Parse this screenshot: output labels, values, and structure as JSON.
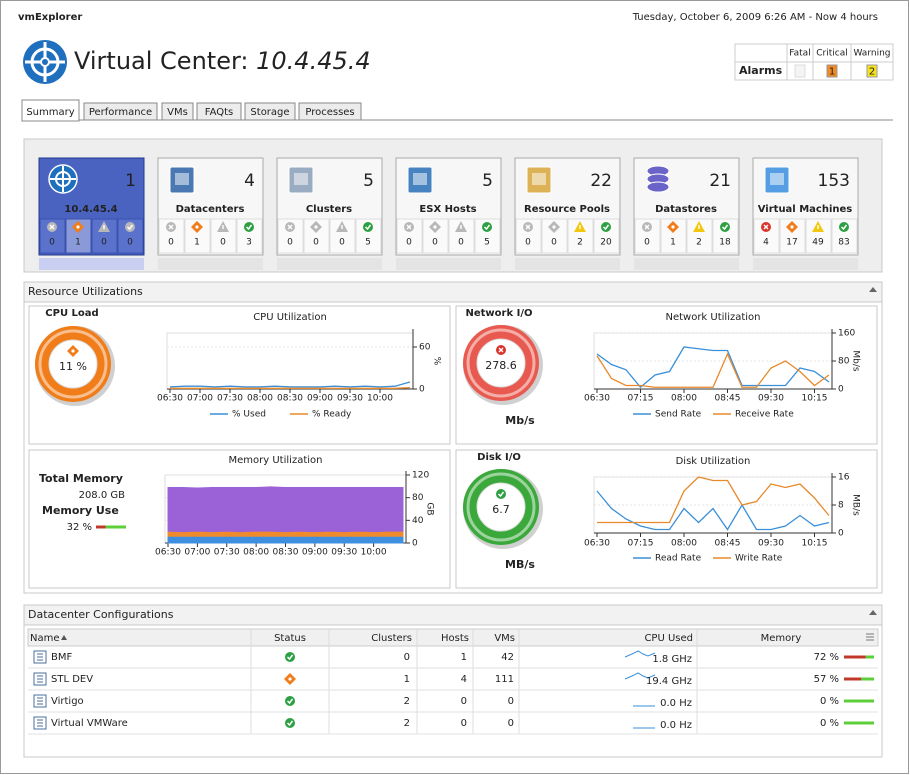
{
  "header": {
    "app": "vmExplorer",
    "timestamp": "Tuesday, October 6, 2009 6:26 AM - Now 4 hours",
    "title": "Virtual Center:",
    "host": "10.4.45.4"
  },
  "alarms": {
    "label": "Alarms",
    "columns": [
      {
        "name": "Fatal"
      },
      {
        "name": "Critical",
        "value": 1,
        "color": "#f08a24"
      },
      {
        "name": "Warning",
        "value": 2,
        "color": "#f7e31b"
      }
    ]
  },
  "tabs": {
    "items": [
      "Summary",
      "Performance",
      "VMs",
      "FAQts",
      "Storage",
      "Processes"
    ],
    "selected": 0
  },
  "tiles": [
    {
      "label": "10.4.45.4",
      "count": 1,
      "states": [
        0,
        1,
        0,
        0
      ],
      "selected": true
    },
    {
      "label": "Datacenters",
      "count": 4,
      "states": [
        0,
        1,
        0,
        3
      ]
    },
    {
      "label": "Clusters",
      "count": 5,
      "states": [
        0,
        0,
        0,
        5
      ]
    },
    {
      "label": "ESX Hosts",
      "count": 5,
      "states": [
        0,
        0,
        0,
        5
      ]
    },
    {
      "label": "Resource Pools",
      "count": 22,
      "states": [
        0,
        0,
        2,
        20
      ]
    },
    {
      "label": "Datastores",
      "count": 21,
      "states": [
        0,
        1,
        2,
        18
      ]
    },
    {
      "label": "Virtual Machines",
      "count": 153,
      "states": [
        4,
        17,
        49,
        83
      ]
    }
  ],
  "resources": {
    "title": "Resource Utilizations",
    "cpu": {
      "gauge": {
        "label": "CPU Load",
        "value": 11,
        "value_label": "11 %",
        "color": "#f07d1a"
      },
      "chart": {
        "type": "line",
        "title": "CPU Utilization",
        "x": [
          "06:30",
          "06:45",
          "07:00",
          "07:15",
          "07:30",
          "07:45",
          "08:00",
          "08:15",
          "08:30",
          "08:45",
          "09:00",
          "09:15",
          "09:30",
          "09:45",
          "10:00",
          "10:15",
          "10:30"
        ],
        "xticks": [
          "06:30",
          "07:00",
          "07:30",
          "08:00",
          "08:30",
          "09:00",
          "09:30",
          "10:00"
        ],
        "ylim": [
          0,
          80
        ],
        "yticks": [
          0,
          60
        ],
        "y_unit": "%",
        "grid": true,
        "series": [
          {
            "name": "% Used",
            "color": "#3a8fd9",
            "values": [
              3,
              4,
              4,
              3,
              4,
              3,
              3,
              4,
              3,
              3,
              3,
              4,
              3,
              4,
              3,
              4,
              10
            ]
          },
          {
            "name": "% Ready",
            "color": "#e8892b",
            "values": [
              1,
              1,
              1,
              1,
              1,
              1,
              1,
              1,
              1,
              1,
              1,
              1,
              1,
              1,
              1,
              1,
              2
            ]
          }
        ]
      }
    },
    "memory": {
      "total_label": "Total Memory",
      "total": "208.0 GB",
      "use_label": "Memory Use",
      "use": 32,
      "use_value_label": "32 %",
      "chart": {
        "type": "stacked_area",
        "title": "Memory Utilization",
        "x": [
          "06:30",
          "06:45",
          "07:00",
          "07:15",
          "07:30",
          "07:45",
          "08:00",
          "08:15",
          "08:30",
          "08:45",
          "09:00",
          "09:15",
          "09:30",
          "09:45",
          "10:00",
          "10:15",
          "10:30"
        ],
        "xticks": [
          "06:30",
          "07:00",
          "07:30",
          "08:00",
          "08:30",
          "09:00",
          "09:30",
          "10:00"
        ],
        "ylim": [
          0,
          120
        ],
        "yticks": [
          0,
          40,
          80,
          120
        ],
        "y_unit": "GB",
        "grid": true,
        "series": [
          {
            "color": "#3f8fe0",
            "values": [
              12,
              12,
              12,
              12,
              12,
              12,
              12,
              12,
              12,
              12,
              12,
              12,
              12,
              12,
              12,
              12,
              12
            ]
          },
          {
            "color": "#ef8b2c",
            "values": [
              9,
              8,
              9,
              8,
              9,
              8,
              9,
              9,
              8,
              9,
              8,
              9,
              8,
              9,
              8,
              9,
              9
            ]
          },
          {
            "color": "#9b62d8",
            "values": [
              77,
              78,
              76,
              78,
              77,
              78,
              77,
              78,
              78,
              77,
              78,
              77,
              78,
              77,
              78,
              77,
              77
            ]
          }
        ]
      }
    },
    "network": {
      "gauge": {
        "label": "Network I/O",
        "value": 278.6,
        "unit": "Mb/s",
        "color": "#e85a4f"
      },
      "chart": {
        "type": "line",
        "title": "Network Utilization",
        "x": [
          "06:30",
          "06:45",
          "07:00",
          "07:15",
          "07:30",
          "07:45",
          "08:00",
          "08:15",
          "08:30",
          "08:45",
          "09:00",
          "09:15",
          "09:30",
          "09:45",
          "10:00",
          "10:15",
          "10:30"
        ],
        "xticks": [
          "06:30",
          "07:15",
          "08:00",
          "08:45",
          "09:30",
          "10:15"
        ],
        "ylim": [
          0,
          160
        ],
        "yticks": [
          0,
          80,
          160
        ],
        "y_unit": "Mb/s",
        "grid": true,
        "series": [
          {
            "name": "Send Rate",
            "color": "#3a8fd9",
            "values": [
              100,
              70,
              55,
              5,
              40,
              50,
              120,
              115,
              110,
              110,
              10,
              10,
              10,
              10,
              60,
              50,
              20
            ]
          },
          {
            "name": "Receive Rate",
            "color": "#e8892b",
            "values": [
              95,
              30,
              10,
              10,
              5,
              5,
              5,
              5,
              5,
              100,
              5,
              5,
              60,
              80,
              50,
              10,
              40
            ]
          }
        ]
      }
    },
    "disk": {
      "gauge": {
        "label": "Disk I/O",
        "value": 6.7,
        "unit": "MB/s",
        "color": "#3aa83a"
      },
      "chart": {
        "type": "line",
        "title": "Disk Utilization",
        "x": [
          "06:30",
          "06:45",
          "07:00",
          "07:15",
          "07:30",
          "07:45",
          "08:00",
          "08:15",
          "08:30",
          "08:45",
          "09:00",
          "09:15",
          "09:30",
          "09:45",
          "10:00",
          "10:15",
          "10:30"
        ],
        "xticks": [
          "06:30",
          "07:15",
          "08:00",
          "08:45",
          "09:30",
          "10:15"
        ],
        "ylim": [
          0,
          16
        ],
        "yticks": [
          0,
          8,
          16
        ],
        "y_unit": "MB/s",
        "grid": true,
        "series": [
          {
            "name": "Read Rate",
            "color": "#3a8fd9",
            "values": [
              12,
              7,
              4,
              2,
              1,
              1,
              7,
              3,
              7,
              1,
              8,
              1,
              1,
              2,
              5,
              2,
              3
            ]
          },
          {
            "name": "Write Rate",
            "color": "#e8892b",
            "values": [
              3,
              3,
              3,
              3,
              3,
              3,
              12,
              16,
              15,
              15,
              8,
              9,
              14,
              13,
              14,
              10,
              5
            ]
          }
        ]
      }
    }
  },
  "datacenters": {
    "title": "Datacenter Configurations",
    "columns": [
      "Name",
      "Status",
      "Clusters",
      "Hosts",
      "VMs",
      "CPU Used",
      "Memory"
    ],
    "rows": [
      {
        "name": "BMF",
        "status": "normal",
        "clusters": 0,
        "hosts": 1,
        "vms": 42,
        "cpu": "1.8 GHz",
        "memory": 72,
        "memory_label": "72 %"
      },
      {
        "name": "STL DEV",
        "status": "critical",
        "clusters": 1,
        "hosts": 4,
        "vms": 111,
        "cpu": "19.4 GHz",
        "memory": 57,
        "memory_label": "57 %"
      },
      {
        "name": "Virtigo",
        "status": "normal",
        "clusters": 2,
        "hosts": 0,
        "vms": 0,
        "cpu": "0.0 Hz",
        "memory": 0,
        "memory_label": "0 %"
      },
      {
        "name": "Virtual VMWare",
        "status": "normal",
        "clusters": 2,
        "hosts": 0,
        "vms": 0,
        "cpu": "0.0 Hz",
        "memory": 0,
        "memory_label": "0 %"
      }
    ]
  }
}
